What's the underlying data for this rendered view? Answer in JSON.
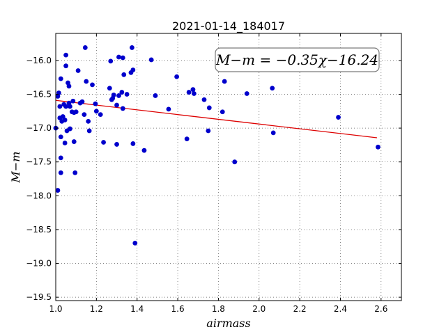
{
  "chart_data": {
    "type": "scatter",
    "title": "2021-01-14_184017",
    "xlabel": "airmass",
    "ylabel": "M−m",
    "xlim": [
      1.0,
      2.7
    ],
    "ylim": [
      -19.55,
      -15.6
    ],
    "x_ticks": [
      1.0,
      1.2,
      1.4,
      1.6,
      1.8,
      2.0,
      2.2,
      2.4,
      2.6
    ],
    "x_tick_labels": [
      "1.0",
      "1.2",
      "1.4",
      "1.6",
      "1.8",
      "2.0",
      "2.2",
      "2.4",
      "2.6"
    ],
    "y_ticks": [
      -16.0,
      -16.5,
      -17.0,
      -17.5,
      -18.0,
      -18.5,
      -19.0,
      -19.5
    ],
    "y_tick_labels": [
      "−16.0",
      "−16.5",
      "−17.0",
      "−17.5",
      "−18.0",
      "−18.5",
      "−19.0",
      "−19.5"
    ],
    "grid": true,
    "point_color": "#0000cc",
    "line_color": "#dd0000",
    "annotation": "M−m = −0.35χ−16.24",
    "fit": {
      "slope": -0.35,
      "intercept": -16.24,
      "x_range": [
        1.0,
        2.58
      ]
    },
    "points": [
      {
        "x": 1.0,
        "y": -17.0
      },
      {
        "x": 1.01,
        "y": -17.92
      },
      {
        "x": 1.01,
        "y": -16.53
      },
      {
        "x": 1.015,
        "y": -16.48
      },
      {
        "x": 1.02,
        "y": -16.68
      },
      {
        "x": 1.02,
        "y": -16.85
      },
      {
        "x": 1.025,
        "y": -16.27
      },
      {
        "x": 1.025,
        "y": -17.13
      },
      {
        "x": 1.025,
        "y": -17.44
      },
      {
        "x": 1.025,
        "y": -17.66
      },
      {
        "x": 1.03,
        "y": -16.9
      },
      {
        "x": 1.035,
        "y": -16.83
      },
      {
        "x": 1.04,
        "y": -16.65
      },
      {
        "x": 1.045,
        "y": -16.88
      },
      {
        "x": 1.045,
        "y": -17.22
      },
      {
        "x": 1.05,
        "y": -15.92
      },
      {
        "x": 1.05,
        "y": -16.08
      },
      {
        "x": 1.05,
        "y": -16.68
      },
      {
        "x": 1.055,
        "y": -17.04
      },
      {
        "x": 1.06,
        "y": -16.33
      },
      {
        "x": 1.065,
        "y": -16.38
      },
      {
        "x": 1.065,
        "y": -16.63
      },
      {
        "x": 1.07,
        "y": -16.68
      },
      {
        "x": 1.07,
        "y": -17.01
      },
      {
        "x": 1.08,
        "y": -16.76
      },
      {
        "x": 1.085,
        "y": -16.6
      },
      {
        "x": 1.09,
        "y": -16.77
      },
      {
        "x": 1.09,
        "y": -17.2
      },
      {
        "x": 1.095,
        "y": -17.66
      },
      {
        "x": 1.1,
        "y": -16.76
      },
      {
        "x": 1.11,
        "y": -16.15
      },
      {
        "x": 1.12,
        "y": -16.63
      },
      {
        "x": 1.13,
        "y": -16.61
      },
      {
        "x": 1.14,
        "y": -16.8
      },
      {
        "x": 1.145,
        "y": -15.81
      },
      {
        "x": 1.15,
        "y": -16.31
      },
      {
        "x": 1.16,
        "y": -16.9
      },
      {
        "x": 1.165,
        "y": -17.04
      },
      {
        "x": 1.18,
        "y": -16.36
      },
      {
        "x": 1.195,
        "y": -16.64
      },
      {
        "x": 1.2,
        "y": -16.75
      },
      {
        "x": 1.22,
        "y": -16.8
      },
      {
        "x": 1.235,
        "y": -17.21
      },
      {
        "x": 1.265,
        "y": -16.41
      },
      {
        "x": 1.27,
        "y": -16.01
      },
      {
        "x": 1.275,
        "y": -16.58
      },
      {
        "x": 1.28,
        "y": -16.56
      },
      {
        "x": 1.285,
        "y": -16.51
      },
      {
        "x": 1.3,
        "y": -16.66
      },
      {
        "x": 1.3,
        "y": -17.24
      },
      {
        "x": 1.31,
        "y": -15.95
      },
      {
        "x": 1.31,
        "y": -16.52
      },
      {
        "x": 1.325,
        "y": -16.47
      },
      {
        "x": 1.33,
        "y": -15.96
      },
      {
        "x": 1.33,
        "y": -16.71
      },
      {
        "x": 1.335,
        "y": -16.21
      },
      {
        "x": 1.35,
        "y": -16.5
      },
      {
        "x": 1.37,
        "y": -16.18
      },
      {
        "x": 1.375,
        "y": -15.81
      },
      {
        "x": 1.38,
        "y": -16.14
      },
      {
        "x": 1.38,
        "y": -17.23
      },
      {
        "x": 1.39,
        "y": -18.7
      },
      {
        "x": 1.435,
        "y": -17.33
      },
      {
        "x": 1.47,
        "y": -15.99
      },
      {
        "x": 1.49,
        "y": -16.52
      },
      {
        "x": 1.555,
        "y": -16.72
      },
      {
        "x": 1.595,
        "y": -16.24
      },
      {
        "x": 1.645,
        "y": -17.16
      },
      {
        "x": 1.655,
        "y": -16.47
      },
      {
        "x": 1.675,
        "y": -16.43
      },
      {
        "x": 1.68,
        "y": -16.49
      },
      {
        "x": 1.73,
        "y": -16.58
      },
      {
        "x": 1.75,
        "y": -17.04
      },
      {
        "x": 1.755,
        "y": -16.7
      },
      {
        "x": 1.82,
        "y": -16.76
      },
      {
        "x": 1.83,
        "y": -16.31
      },
      {
        "x": 1.88,
        "y": -17.5
      },
      {
        "x": 1.94,
        "y": -16.49
      },
      {
        "x": 2.065,
        "y": -16.41
      },
      {
        "x": 2.07,
        "y": -17.07
      },
      {
        "x": 2.39,
        "y": -16.84
      },
      {
        "x": 2.585,
        "y": -17.28
      }
    ]
  }
}
